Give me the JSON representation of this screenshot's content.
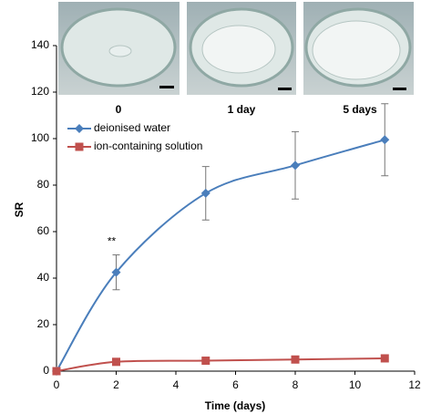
{
  "chart_data": {
    "type": "line",
    "xlabel": "Time (days)",
    "ylabel": "SR",
    "x": [
      0,
      2,
      5,
      8,
      11
    ],
    "series": [
      {
        "name": "deionised water",
        "color": "#4a7ebb",
        "marker": "diamond",
        "values": [
          0,
          42.5,
          76.5,
          88.5,
          99.5
        ],
        "errors": [
          0,
          7.5,
          11.5,
          14.5,
          15.5
        ]
      },
      {
        "name": "ion-containing solution",
        "color": "#c0504d",
        "marker": "square",
        "values": [
          0,
          4,
          4.5,
          5,
          5.5
        ],
        "errors": [
          0,
          0.8,
          0.8,
          1.2,
          1.5
        ]
      }
    ],
    "xlim": [
      0,
      12
    ],
    "xticks": [
      0,
      2,
      4,
      6,
      8,
      10,
      12
    ],
    "ylim": [
      0,
      140
    ],
    "yticks": [
      0,
      20,
      40,
      60,
      80,
      100,
      120,
      140
    ],
    "annotations": [
      "**"
    ],
    "inset_labels": [
      "0",
      "1 day",
      "5 days"
    ]
  }
}
